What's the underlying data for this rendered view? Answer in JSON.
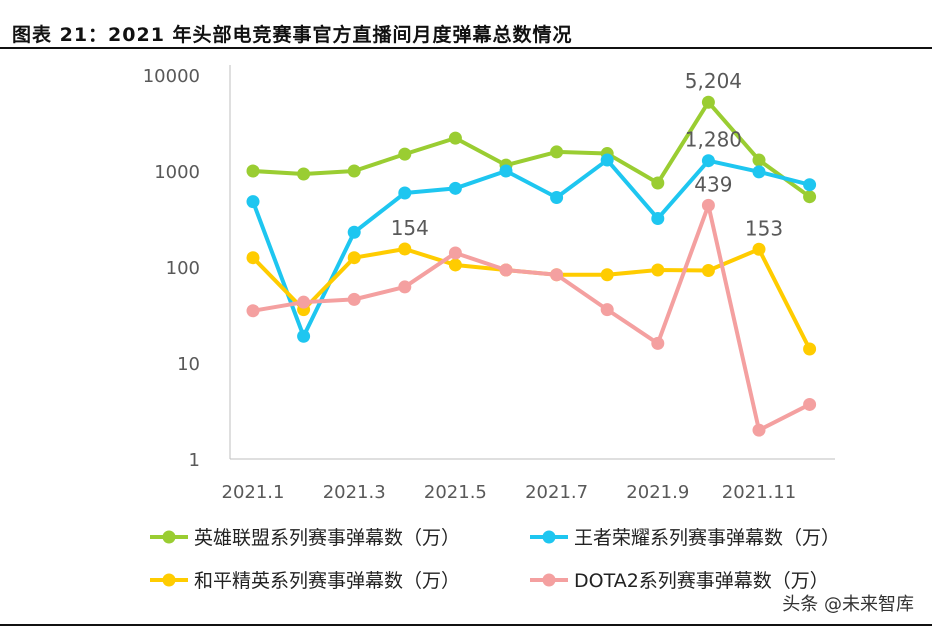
{
  "title": "图表 21：2021 年头部电竞赛事官方直播间月度弹幕总数情况",
  "watermark": "头条 @未来智库",
  "chart_data": {
    "type": "line",
    "title": "",
    "xlabel": "",
    "ylabel": "",
    "yscale": "log",
    "ylim": [
      1,
      10000
    ],
    "yticks": [
      "1",
      "10",
      "100",
      "1000",
      "10000"
    ],
    "x": [
      "2021.1",
      "2021.2",
      "2021.3",
      "2021.4",
      "2021.5",
      "2021.6",
      "2021.7",
      "2021.8",
      "2021.9",
      "2021.10",
      "2021.11",
      "2021.12"
    ],
    "xtick_labels": [
      "2021.1",
      "2021.3",
      "2021.5",
      "2021.7",
      "2021.9",
      "2021.11"
    ],
    "grid": false,
    "legend_position": "bottom",
    "series": [
      {
        "name": "英雄联盟系列赛事弹幕数（万）",
        "color": "#9ACD32",
        "values": [
          1000,
          930,
          1000,
          1500,
          2200,
          1150,
          1580,
          1520,
          750,
          5204,
          1300,
          540
        ],
        "labels": {
          "9": "5,204"
        }
      },
      {
        "name": "王者荣耀系列赛事弹幕数（万）",
        "color": "#1EC6F0",
        "values": [
          480,
          19,
          230,
          590,
          660,
          1000,
          530,
          1300,
          320,
          1280,
          980,
          720
        ],
        "labels": {
          "9": "1,280"
        }
      },
      {
        "name": "和平精英系列赛事弹幕数（万）",
        "color": "#FFCC00",
        "values": [
          125,
          36,
          125,
          154,
          105,
          93,
          83,
          83,
          93,
          92,
          153,
          14
        ],
        "labels": {
          "3": "154",
          "10": "153"
        }
      },
      {
        "name": "DOTA2系列赛事弹幕数（万）",
        "color": "#F4A0A0",
        "values": [
          35,
          43,
          46,
          62,
          140,
          93,
          83,
          36,
          16,
          439,
          2,
          3.7
        ],
        "labels": {
          "9": "439"
        }
      }
    ]
  }
}
